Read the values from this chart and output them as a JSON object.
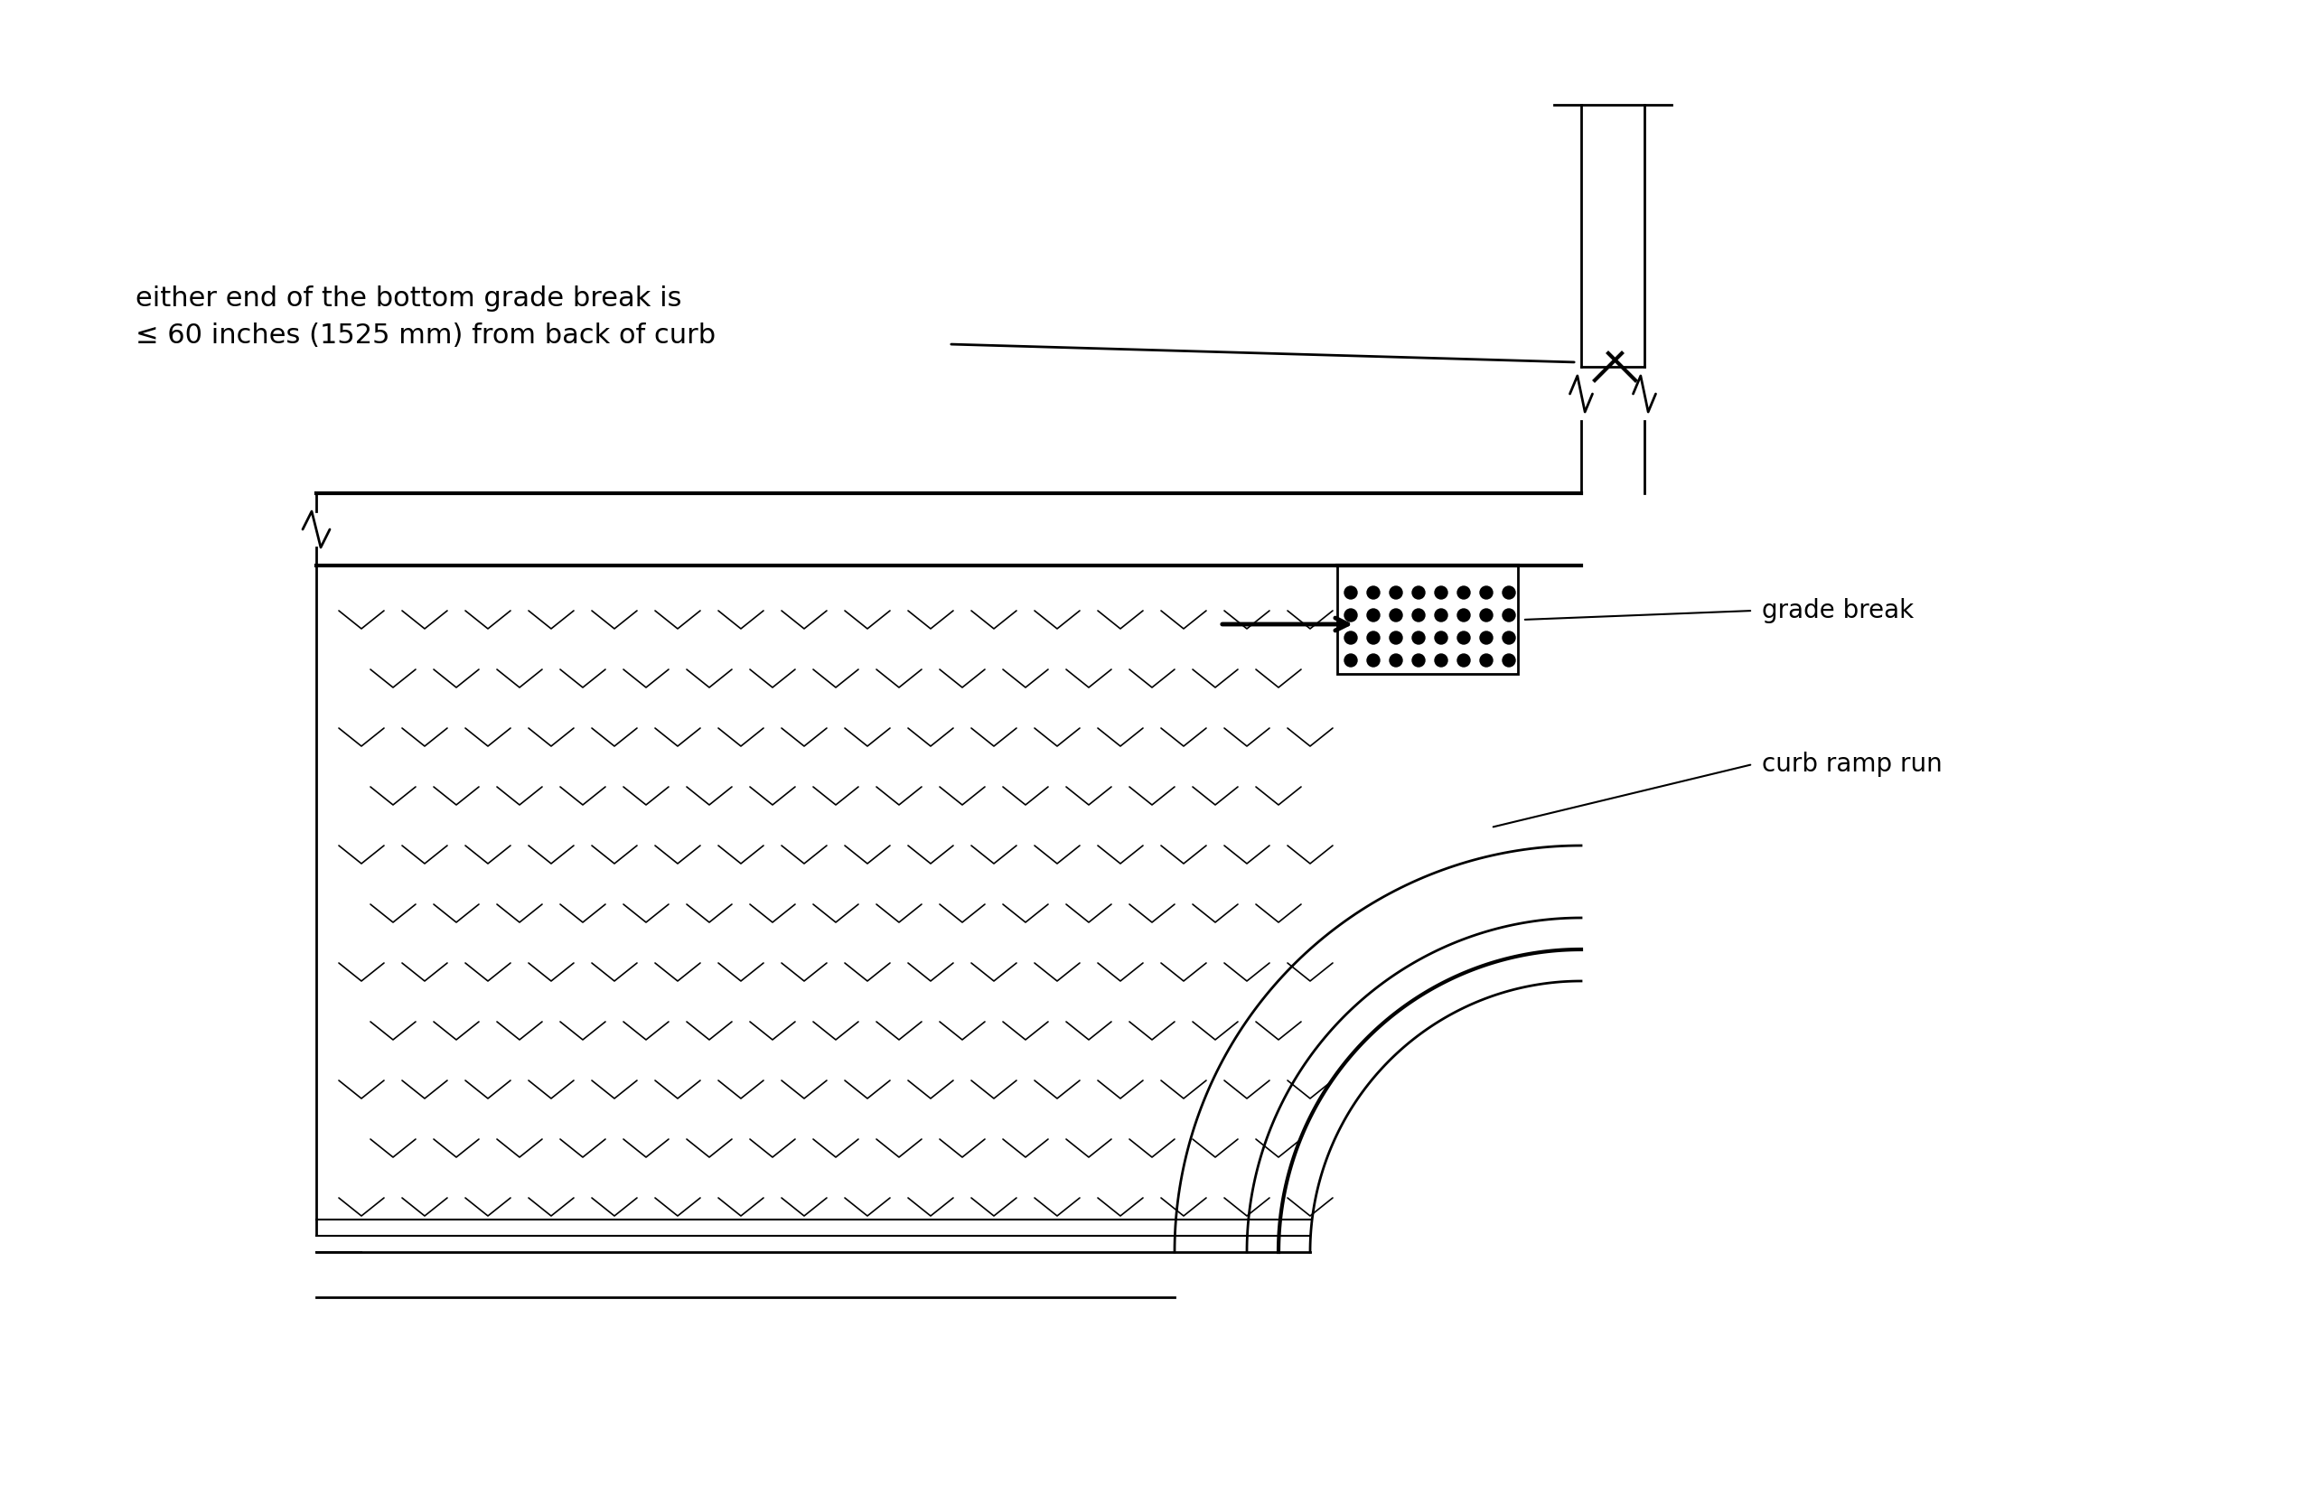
{
  "bg_color": "#ffffff",
  "line_color": "#000000",
  "fig_width": 25.5,
  "fig_height": 16.66,
  "label_grade_break": "grade break",
  "label_curb_ramp_run": "curb ramp run",
  "label_annotation": "either end of the bottom grade break is\n≤ 60 inches (1525 mm) from back of curb",
  "font_size_labels": 20,
  "font_size_annotation": 22
}
